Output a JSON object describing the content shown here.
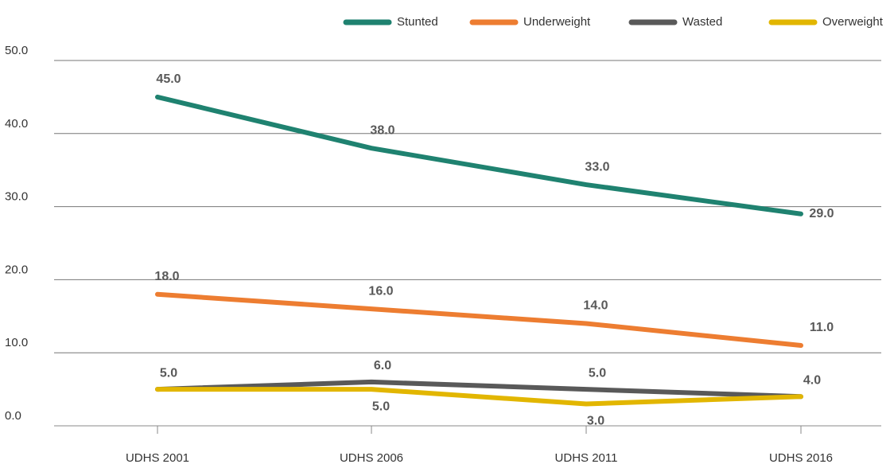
{
  "chart_data": {
    "type": "line",
    "categories": [
      "UDHS 2001",
      "UDHS 2006",
      "UDHS 2011",
      "UDHS 2016"
    ],
    "series": [
      {
        "name": "Stunted",
        "color": "#1f8270",
        "values": [
          45,
          38,
          33,
          29
        ],
        "value_labels": [
          "45.0",
          "38.0",
          "33.0",
          "29.0"
        ]
      },
      {
        "name": "Underweight",
        "color": "#ed7d31",
        "values": [
          18,
          16,
          14,
          11
        ],
        "value_labels": [
          "18.0",
          "16.0",
          "14.0",
          "11.0"
        ]
      },
      {
        "name": "Wasted",
        "color": "#595959",
        "values": [
          5,
          6,
          5,
          4
        ],
        "value_labels": [
          "5.0",
          "6.0",
          "5.0",
          "4.0"
        ]
      },
      {
        "name": "Overweight",
        "color": "#e2b600",
        "values": [
          5,
          5,
          3,
          4
        ],
        "value_labels": [
          null,
          "5.0",
          "3.0",
          null
        ]
      }
    ],
    "ylim": [
      0,
      50
    ],
    "yticks": [
      {
        "value": 0,
        "label": "0.0"
      },
      {
        "value": 10,
        "label": "10.0"
      },
      {
        "value": 20,
        "label": "20.0"
      },
      {
        "value": 30,
        "label": "30.0"
      },
      {
        "value": 40,
        "label": "40.0"
      },
      {
        "value": 50,
        "label": "50.0"
      }
    ],
    "grid": true,
    "legend": "top"
  }
}
